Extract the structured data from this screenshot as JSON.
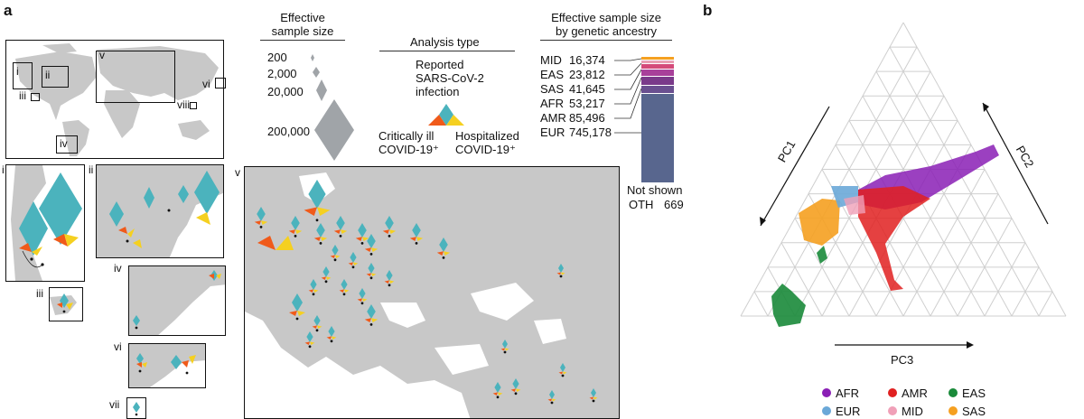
{
  "panels": {
    "a": "a",
    "b": "b"
  },
  "roman": [
    "i",
    "ii",
    "iii",
    "iv",
    "v",
    "vi",
    "vii",
    "viii"
  ],
  "legend": {
    "size_title": "Effective\nsample size",
    "size_values": [
      "200",
      "2,000",
      "20,000",
      "200,000"
    ],
    "analysis_title": "Analysis type",
    "reported": "Reported\nSARS-CoV-2\ninfection",
    "critical": "Critically ill\nCOVID-19⁺",
    "hospitalized": "Hospitalized\nCOVID-19⁺"
  },
  "ancestry": {
    "title": "Effective sample size\nby genetic ancestry",
    "rows": [
      {
        "code": "MID",
        "value": "16,374",
        "color": "#e8a0b4"
      },
      {
        "code": "EAS",
        "value": "23,812",
        "color": "#d44a7a"
      },
      {
        "code": "SAS",
        "value": "41,645",
        "color": "#a8409a"
      },
      {
        "code": "AFR",
        "value": "53,217",
        "color": "#7a3a8a"
      },
      {
        "code": "AMR",
        "value": "85,496",
        "color": "#6a5090"
      },
      {
        "code": "EUR",
        "value": "745,178",
        "color": "#58668e"
      }
    ],
    "not_shown": "Not shown",
    "oth_code": "OTH",
    "oth_value": "669"
  },
  "pca": {
    "axes": {
      "pc1": "PC1",
      "pc2": "PC2",
      "pc3": "PC3"
    },
    "legend": [
      {
        "label": "AFR",
        "color": "#8a1fb5"
      },
      {
        "label": "AMR",
        "color": "#e02020"
      },
      {
        "label": "EAS",
        "color": "#1a8a3a"
      },
      {
        "label": "EUR",
        "color": "#6aa8d8"
      },
      {
        "label": "MID",
        "color": "#f0a0b8"
      },
      {
        "label": "SAS",
        "color": "#f5a020"
      }
    ]
  },
  "colors": {
    "teal": "#4bb3bd",
    "orange": "#f05a1a",
    "yellow": "#f5d020",
    "grey": "#a0a4a8",
    "land": "#c8c8c8"
  }
}
